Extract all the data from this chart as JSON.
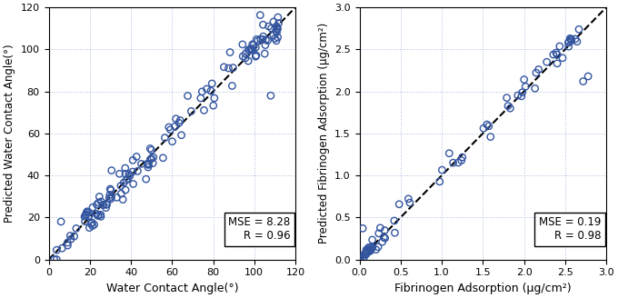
{
  "plot1": {
    "xlabel": "Water Contact Angle(°)",
    "ylabel": "Predicted Water Contact Angle(°)",
    "xlim": [
      0,
      120
    ],
    "ylim": [
      0,
      120
    ],
    "xticks": [
      0,
      20,
      40,
      60,
      80,
      100,
      120
    ],
    "yticks": [
      0,
      20,
      40,
      60,
      80,
      100,
      120
    ],
    "mse": "MSE = 8.28",
    "r": "R = 0.96"
  },
  "plot2": {
    "xlabel": "Fibrinogen Adsorption (μg/cm²)",
    "ylabel": "Predicted Fibrinogen Adsorption (μg/cm²)",
    "xlim": [
      0,
      3.0
    ],
    "ylim": [
      0,
      3.0
    ],
    "xticks": [
      0.0,
      0.5,
      1.0,
      1.5,
      2.0,
      2.5,
      3.0
    ],
    "yticks": [
      0.0,
      0.5,
      1.0,
      1.5,
      2.0,
      2.5,
      3.0
    ],
    "mse": "MSE = 0.19",
    "r": "R = 0.98"
  },
  "scatter_color": "#3355a0",
  "grid_color": "#aabbdd",
  "grid_linestyle": ":",
  "dashed_line_color": "black",
  "background_color": "white",
  "scatter_s": 28,
  "scatter_lw": 1.0,
  "xlabel_fontsize": 9,
  "ylabel_fontsize": 8.5,
  "tick_fontsize": 8,
  "annotation_fontsize": 8.5,
  "p1_seed": 42,
  "p2_seed": 99,
  "figsize": [
    6.8,
    3.28
  ],
  "dpi": 100
}
